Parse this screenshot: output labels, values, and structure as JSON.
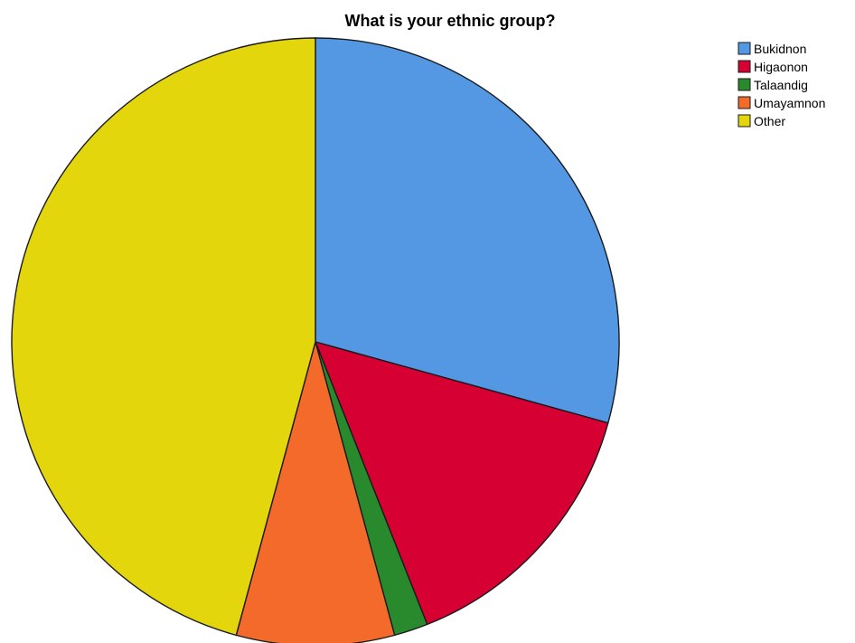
{
  "chart_data": {
    "type": "pie",
    "title": "What is your ethnic group?",
    "categories": [
      "Bukidnon",
      "Higaonon",
      "Talaandig",
      "Umayamnon",
      "Other"
    ],
    "values": [
      29.3,
      14.7,
      1.8,
      8.4,
      45.8
    ],
    "unit": "percent",
    "start": "12 o'clock",
    "direction": "clockwise",
    "colors": [
      "#5498e4",
      "#d60032",
      "#298a2d",
      "#f46a2a",
      "#e3d60c"
    ],
    "legend": {
      "position": "top-right",
      "entries": [
        "Bukidnon",
        "Higaonon",
        "Talaandig",
        "Umayamnon",
        "Other"
      ]
    }
  }
}
